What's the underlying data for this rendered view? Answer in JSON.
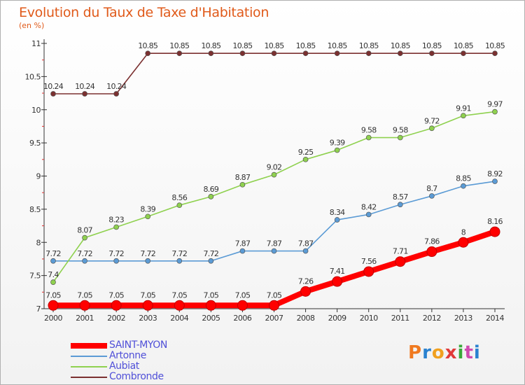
{
  "title": "Evolution du Taux de Taxe d'Habitation",
  "unit": "(en %)",
  "logo": {
    "text": "Proxiti",
    "letter_colors": [
      "#f07a20",
      "#2a82d0",
      "#f0a020",
      "#e03a3a",
      "#3aa83a",
      "#d04ab0",
      "#2a82d0"
    ]
  },
  "chart_data": {
    "type": "line",
    "title": "Evolution du Taux de Taxe d'Habitation",
    "ylabel": "(en %)",
    "xlabel": "",
    "x": [
      "2000",
      "2001",
      "2002",
      "2003",
      "2004",
      "2005",
      "2006",
      "2007",
      "2008",
      "2009",
      "2010",
      "2011",
      "2012",
      "2013",
      "2014"
    ],
    "ylim": [
      7,
      11
    ],
    "yticks": [
      7,
      7.5,
      8,
      8.5,
      9,
      9.5,
      10,
      10.5,
      11
    ],
    "ytick_labels": [
      "7",
      "7.5",
      "8",
      "8.5",
      "9",
      "9.5",
      "10",
      "10.5",
      "11"
    ],
    "grid": false,
    "legend_position": "bottom-left",
    "series": [
      {
        "name": "SAINT-MYON",
        "color": "#ff0000",
        "emphasis": true,
        "values": [
          7.05,
          7.05,
          7.05,
          7.05,
          7.05,
          7.05,
          7.05,
          7.05,
          7.26,
          7.41,
          7.56,
          7.71,
          7.86,
          8,
          8.16
        ],
        "labels": [
          "7.05",
          "7.05",
          "7.05",
          "7.05",
          "7.05",
          "7.05",
          "7.05",
          "7.05",
          "7.26",
          "7.41",
          "7.56",
          "7.71",
          "7.86",
          "8",
          "8.16"
        ]
      },
      {
        "name": "Artonne",
        "color": "#5b9bd5",
        "emphasis": false,
        "values": [
          7.72,
          7.72,
          7.72,
          7.72,
          7.72,
          7.72,
          7.87,
          7.87,
          7.87,
          8.34,
          8.42,
          8.57,
          8.7,
          8.85,
          8.92
        ],
        "labels": [
          "7.72",
          "7.72",
          "7.72",
          "7.72",
          "7.72",
          "7.72",
          "7.87",
          "7.87",
          "7.87",
          "8.34",
          "8.42",
          "8.57",
          "8.7",
          "8.85",
          "8.92"
        ]
      },
      {
        "name": "Aubiat",
        "color": "#8fd14f",
        "emphasis": false,
        "values": [
          7.4,
          8.07,
          8.23,
          8.39,
          8.56,
          8.69,
          8.87,
          9.02,
          9.25,
          9.39,
          9.58,
          9.58,
          9.72,
          9.91,
          9.97
        ],
        "labels": [
          "7.4",
          "8.07",
          "8.23",
          "8.39",
          "8.56",
          "8.69",
          "8.87",
          "9.02",
          "9.25",
          "9.39",
          "9.58",
          "9.58",
          "9.72",
          "9.91",
          "9.97"
        ]
      },
      {
        "name": "Combronde",
        "color": "#7b3030",
        "emphasis": false,
        "values": [
          10.24,
          10.24,
          10.24,
          10.85,
          10.85,
          10.85,
          10.85,
          10.85,
          10.85,
          10.85,
          10.85,
          10.85,
          10.85,
          10.85,
          10.85
        ],
        "labels": [
          "10.24",
          "10.24",
          "10.24",
          "10.85",
          "10.85",
          "10.85",
          "10.85",
          "10.85",
          "10.85",
          "10.85",
          "10.85",
          "10.85",
          "10.85",
          "10.85",
          "10.85"
        ]
      }
    ]
  }
}
